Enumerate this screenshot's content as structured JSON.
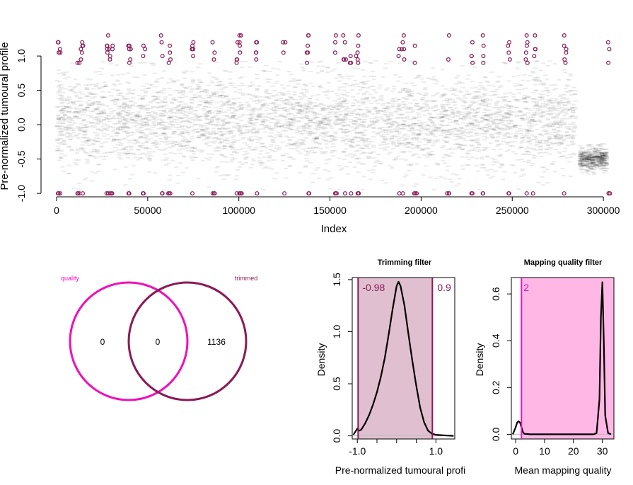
{
  "colors": {
    "quality": "#ee11bb",
    "trimmed": "#8b1a55",
    "trimmed_fill": "#e0c0d0",
    "quality_fill": "#ffb8e6",
    "points": "#000000"
  },
  "chart_data": [
    {
      "id": "scatter",
      "type": "scatter",
      "title": "",
      "xlabel": "Index",
      "ylabel": "Pre-normalized tumoural profile",
      "xlim": [
        0,
        305000
      ],
      "ylim": [
        -1.05,
        1.3
      ],
      "xticks": [
        0,
        50000,
        100000,
        150000,
        200000,
        250000,
        300000
      ],
      "xtick_labels": [
        "0",
        "50000",
        "100000",
        "150000",
        "200000",
        "250000",
        "300000"
      ],
      "yticks": [
        -1.0,
        -0.5,
        0.0,
        0.5,
        1.0
      ],
      "ytick_labels": [
        "-1.0",
        "-0.5",
        "0.0",
        "0.5",
        "1.0"
      ],
      "segments": [
        {
          "x": [
            0,
            285000
          ],
          "mean": 0.05,
          "sd": 0.35
        },
        {
          "x": [
            287000,
            302000
          ],
          "mean": -0.5,
          "sd": 0.08
        }
      ],
      "flagged_clusters_x": [
        1500,
        12000,
        14000,
        28000,
        30000,
        40000,
        48000,
        58000,
        62000,
        75000,
        86000,
        99000,
        101000,
        110000,
        125000,
        138000,
        153000,
        158000,
        161000,
        165000,
        188000,
        190000,
        197000,
        215000,
        228000,
        234000,
        248000,
        258000,
        262000,
        279000,
        303000
      ],
      "flagged_count": 1136
    },
    {
      "id": "venn",
      "type": "venn",
      "sets": [
        {
          "name": "quality",
          "only": 0
        },
        {
          "name": "trimmed",
          "only": 1136
        }
      ],
      "intersection": 0
    },
    {
      "id": "trimming",
      "type": "area",
      "title": "Trimming filter",
      "xlabel": "Pre-normalized tumoural profi",
      "ylabel": "Density",
      "xlim": [
        -1.13,
        1.48
      ],
      "ylim": [
        -0.03,
        1.52
      ],
      "xticks": [
        -1.0,
        -0.5,
        0.0,
        0.5,
        1.0
      ],
      "xtick_labels": [
        "-1.0",
        "",
        "",
        "",
        "1.0"
      ],
      "yticks": [
        0.0,
        0.5,
        1.0,
        1.5
      ],
      "ytick_labels": [
        "0.0",
        "0.5",
        "1.0",
        "1.5"
      ],
      "thresholds": [
        -0.98,
        0.91
      ],
      "threshold_labels": [
        "-0.98",
        "0.9"
      ],
      "x": [
        -1.1,
        -1.05,
        -1.0,
        -0.98,
        -0.95,
        -0.9,
        -0.8,
        -0.7,
        -0.6,
        -0.5,
        -0.4,
        -0.3,
        -0.2,
        -0.1,
        0.0,
        0.05,
        0.1,
        0.2,
        0.3,
        0.4,
        0.5,
        0.6,
        0.7,
        0.8,
        0.9,
        1.0,
        1.2,
        1.45
      ],
      "y": [
        0.01,
        0.04,
        0.07,
        0.06,
        0.05,
        0.06,
        0.12,
        0.2,
        0.3,
        0.42,
        0.57,
        0.75,
        0.98,
        1.22,
        1.44,
        1.48,
        1.44,
        1.25,
        0.98,
        0.72,
        0.48,
        0.27,
        0.13,
        0.05,
        0.02,
        0.01,
        0.005,
        0.0
      ]
    },
    {
      "id": "mapping",
      "type": "area",
      "title": "Mapping quality filter",
      "xlabel": "Mean mapping quality",
      "ylabel": "Density",
      "xlim": [
        -1.5,
        34
      ],
      "ylim": [
        -0.02,
        0.67
      ],
      "xticks": [
        0,
        10,
        20,
        30
      ],
      "xtick_labels": [
        "0",
        "10",
        "20",
        "30"
      ],
      "yticks": [
        0.0,
        0.2,
        0.4,
        0.6
      ],
      "ytick_labels": [
        "0.0",
        "0.2",
        "0.4",
        "0.6"
      ],
      "threshold": 2,
      "threshold_label": "2",
      "x": [
        -1,
        0,
        0.5,
        1,
        1.5,
        2,
        2.5,
        3,
        5,
        10,
        20,
        27,
        28,
        29,
        29.5,
        30,
        30.5,
        31,
        32,
        33
      ],
      "y": [
        0.0,
        0.03,
        0.05,
        0.056,
        0.05,
        0.03,
        0.01,
        0.002,
        0.0,
        0.0,
        0.0,
        0.0,
        0.005,
        0.15,
        0.5,
        0.65,
        0.4,
        0.08,
        0.005,
        0.0
      ]
    }
  ]
}
